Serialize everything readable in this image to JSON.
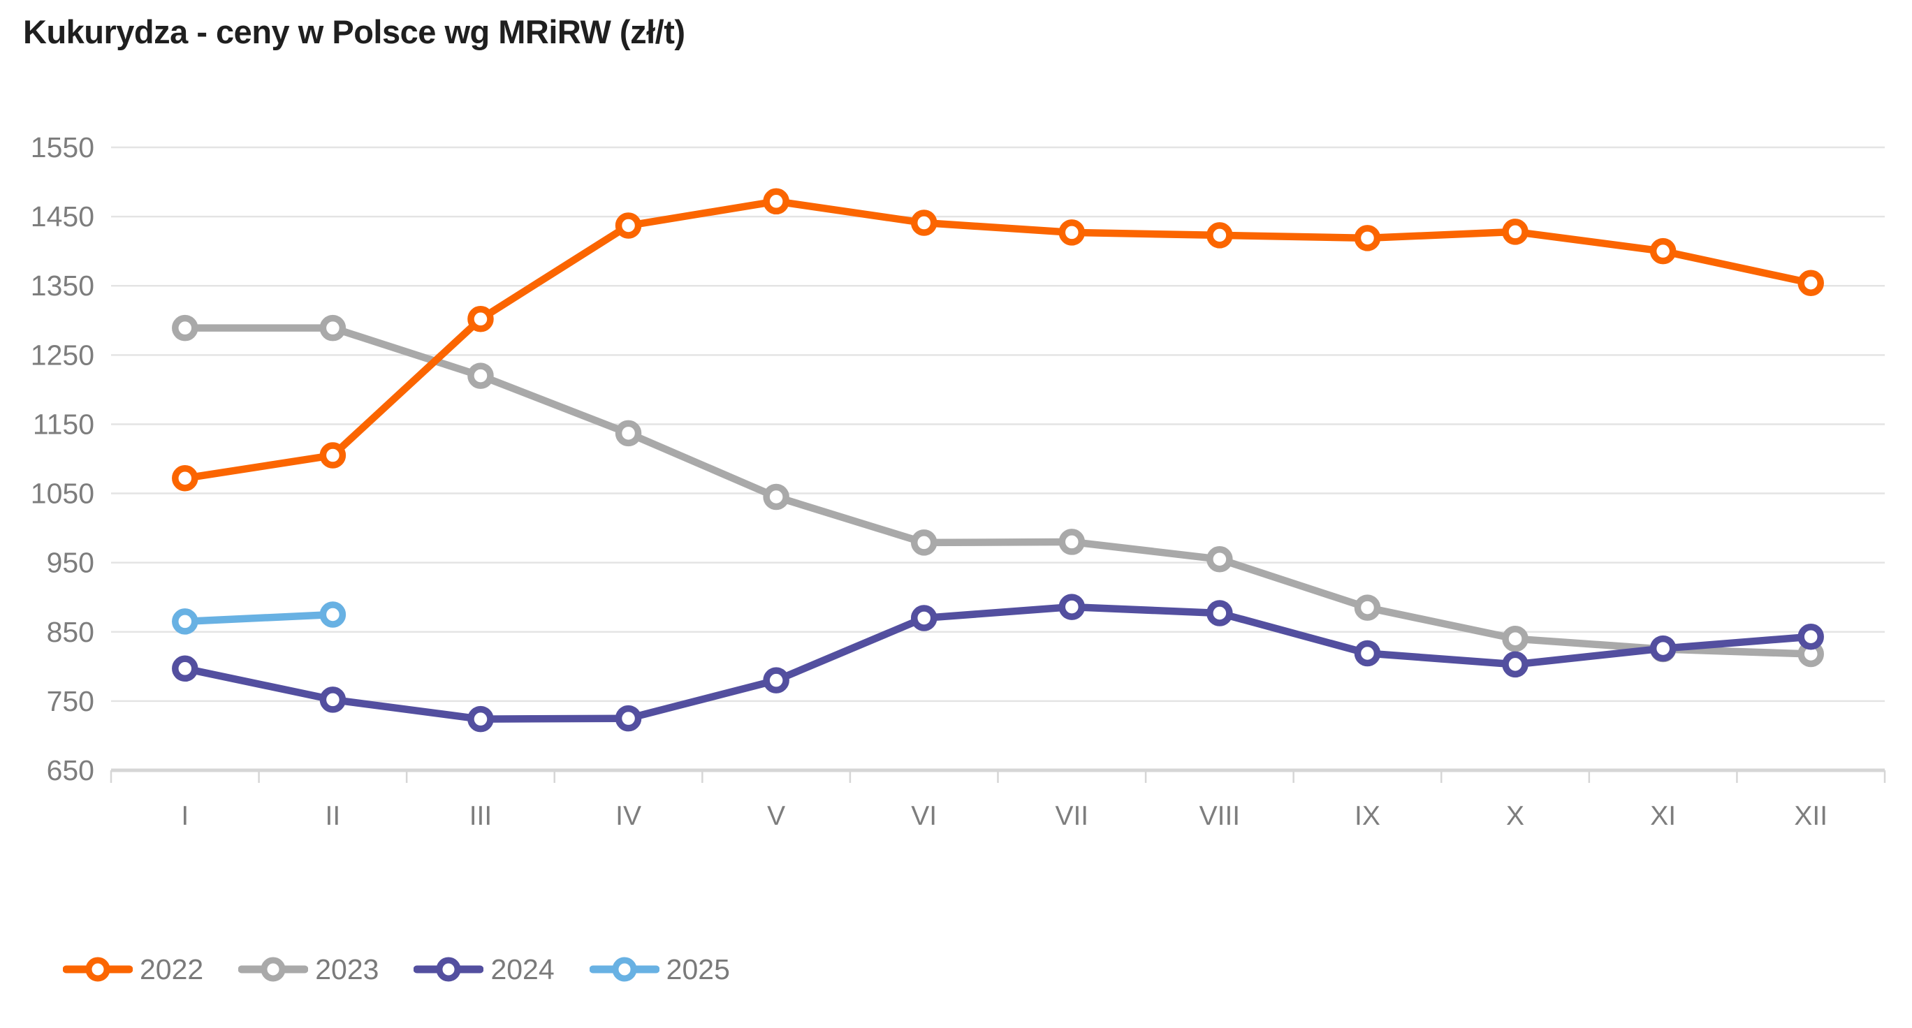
{
  "title": "Kukurydza - ceny w Polsce wg MRiRW (zł/t)",
  "colors": {
    "background": "#ffffff",
    "title_text": "#1f1f1f",
    "axis_text": "#7d7d7d",
    "gridline": "#e4e4e4",
    "axis_line": "#d6d6d6",
    "legend_text": "#7a7a7a",
    "series_2022": "#fb6500",
    "series_2023": "#a9a9a9",
    "series_2024": "#534f9f",
    "series_2025": "#68b1e3"
  },
  "chart_data": {
    "type": "line",
    "title": "Kukurydza - ceny w Polsce wg MRiRW (zł/t)",
    "xlabel": "",
    "ylabel": "",
    "unit": "zł/t",
    "categories": [
      "I",
      "II",
      "III",
      "IV",
      "V",
      "VI",
      "VII",
      "VIII",
      "IX",
      "X",
      "XI",
      "XII"
    ],
    "y_ticks": [
      1550,
      1450,
      1350,
      1250,
      1150,
      1050,
      950,
      850,
      750,
      650
    ],
    "ylim": [
      650,
      1550
    ],
    "grid": "horizontal",
    "legend_position": "bottom-left",
    "marker": "open-circle",
    "series": [
      {
        "name": "2022",
        "color": "#fb6500",
        "values": [
          1072,
          1105,
          1302,
          1437,
          1472,
          1441,
          1427,
          1423,
          1419,
          1428,
          1400,
          1354
        ]
      },
      {
        "name": "2023",
        "color": "#a9a9a9",
        "values": [
          1289,
          1289,
          1220,
          1137,
          1045,
          979,
          980,
          955,
          885,
          840,
          825,
          818
        ]
      },
      {
        "name": "2024",
        "color": "#534f9f",
        "values": [
          797,
          752,
          724,
          725,
          780,
          870,
          886,
          877,
          819,
          803,
          826,
          843
        ]
      },
      {
        "name": "2025",
        "color": "#68b1e3",
        "values": [
          865,
          875
        ]
      }
    ]
  }
}
